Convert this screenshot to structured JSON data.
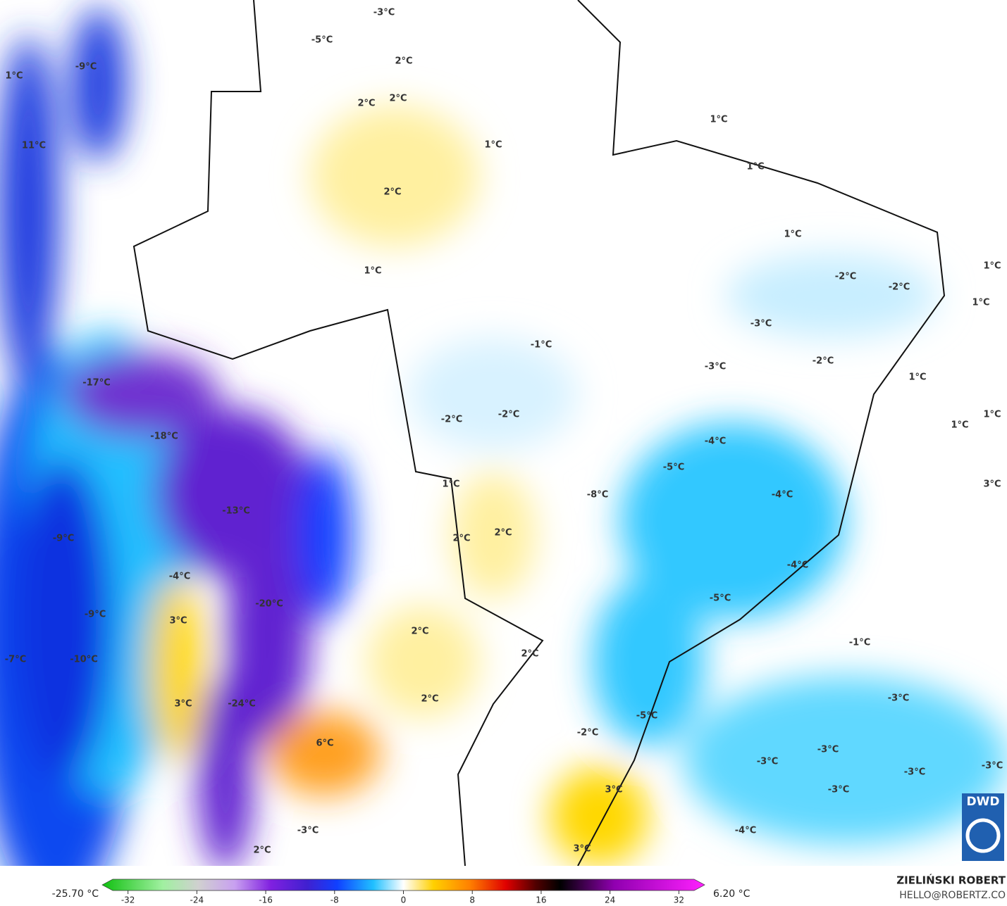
{
  "map": {
    "labels": [
      "-3°C",
      "-5°C",
      "-9°C",
      "1°C",
      "2°C",
      "2°C",
      "2°C",
      "11°C",
      "1°C",
      "2°C",
      "1°C",
      "1°C",
      "1°C",
      "1°C",
      "1°C",
      "-2°C",
      "-2°C",
      "1°C",
      "-3°C",
      "-1°C",
      "-3°C",
      "-2°C",
      "1°C",
      "-17°C",
      "-2°C",
      "-2°C",
      "1°C",
      "1°C",
      "-18°C",
      "-4°C",
      "-5°C",
      "1°C",
      "3°C",
      "-8°C",
      "-4°C",
      "-13°C",
      "2°C",
      "2°C",
      "-9°C",
      "-4°C",
      "-4°C",
      "-5°C",
      "-20°C",
      "-9°C",
      "3°C",
      "2°C",
      "-1°C",
      "-7°C",
      "-10°C",
      "2°C",
      "2°C",
      "-3°C",
      "3°C",
      "-24°C",
      "-5°C",
      "-2°C",
      "6°C",
      "-3°C",
      "-3°C",
      "-3°C",
      "-3°C",
      "3°C",
      "-3°C",
      "-3°C",
      "-4°C",
      "2°C",
      "3°C"
    ]
  },
  "colorbar": {
    "range": [
      -35,
      35
    ],
    "ticks": [
      -32,
      -24,
      -16,
      -8,
      0,
      8,
      16,
      24,
      32
    ],
    "min_label": "-25.70 °C",
    "max_label": "6.20 °C"
  },
  "credit": {
    "author": "ZIELIŃSKI ROBERT",
    "email": "HELLO@ROBERTZ.CO",
    "logo": "DWD"
  }
}
